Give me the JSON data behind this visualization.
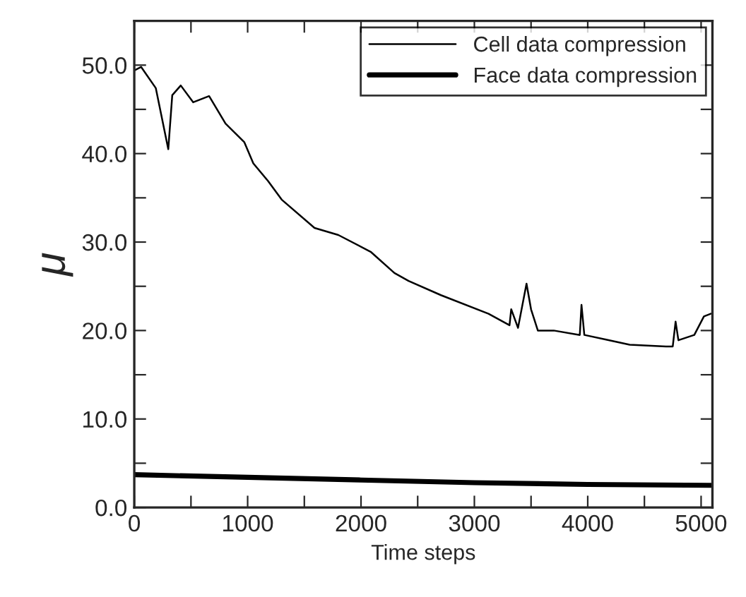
{
  "chart_data": {
    "type": "line",
    "xlabel": "Time steps",
    "ylabel": "μ",
    "xlim": [
      0,
      5100
    ],
    "ylim": [
      0,
      55
    ],
    "xticks": [
      0,
      {
        "value": 500,
        "label": null
      },
      1000,
      {
        "value": 1500,
        "label": null
      },
      2000,
      {
        "value": 2500,
        "label": null
      },
      3000,
      {
        "value": 3500,
        "label": null
      },
      4000,
      {
        "value": 4500,
        "label": null
      },
      5000
    ],
    "yticks": [
      {
        "value": 0,
        "label": "0.0"
      },
      {
        "value": 5,
        "label": null
      },
      {
        "value": 10,
        "label": "10.0"
      },
      {
        "value": 15,
        "label": null
      },
      {
        "value": 20,
        "label": "20.0"
      },
      {
        "value": 25,
        "label": null
      },
      {
        "value": 30,
        "label": "30.0"
      },
      {
        "value": 35,
        "label": null
      },
      {
        "value": 40,
        "label": "40.0"
      },
      {
        "value": 45,
        "label": null
      },
      {
        "value": 50,
        "label": "50.0"
      }
    ],
    "grid": false,
    "legend": "top right",
    "marker": "none",
    "line_style": "solid",
    "series": [
      {
        "name": "Cell data compression",
        "color": "#000000",
        "x": [
          0,
          60,
          190,
          300,
          335,
          410,
          520,
          660,
          805,
          970,
          1050,
          1180,
          1300,
          1590,
          1800,
          2085,
          2295,
          2420,
          2705,
          3125,
          3310,
          3325,
          3385,
          3460,
          3500,
          3560,
          3700,
          3930,
          3945,
          3970,
          4155,
          4370,
          4690,
          4750,
          4775,
          4800,
          4940,
          5025,
          5085
        ],
        "values": [
          49.4,
          49.8,
          47.4,
          40.5,
          46.6,
          47.7,
          45.8,
          46.5,
          43.4,
          41.3,
          38.9,
          36.9,
          34.8,
          31.6,
          30.8,
          28.9,
          26.5,
          25.6,
          24.0,
          21.9,
          20.6,
          22.4,
          20.3,
          25.3,
          22.4,
          20.0,
          20.0,
          19.5,
          22.9,
          19.5,
          19.0,
          18.4,
          18.2,
          18.2,
          21.0,
          18.9,
          19.5,
          21.6,
          21.9
        ]
      },
      {
        "name": "Face data compression",
        "color": "#000000",
        "x": [
          0,
          1000,
          2000,
          3000,
          4000,
          5085
        ],
        "values": [
          3.7,
          3.4,
          3.1,
          2.8,
          2.6,
          2.5
        ]
      }
    ]
  }
}
